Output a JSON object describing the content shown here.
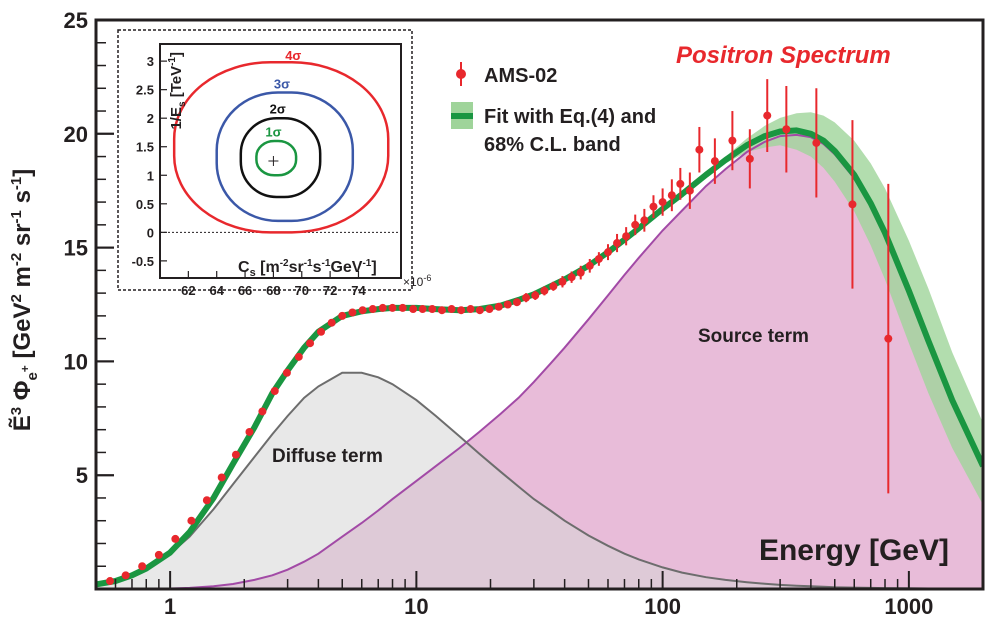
{
  "chart_data": [
    {
      "type": "line",
      "title": "Positron Spectrum",
      "xlabel": "Energy [GeV]",
      "ylabel_parts": {
        "base": "Ẽ",
        "exp": "3",
        "phi": " Φ",
        "phi_sub": "e",
        "phi_sub_sup": "+",
        "units_a": " [GeV",
        "units_b": "2",
        "units_c": " m",
        "units_d": "-2",
        "units_e": " sr",
        "units_f": "-1",
        "units_g": " s",
        "units_h": "-1",
        "units_i": "]"
      },
      "x_scale": "log",
      "xlim": [
        0.5,
        2000
      ],
      "ylim": [
        0,
        25
      ],
      "x_ticks": [
        1,
        10,
        100,
        1000
      ],
      "x_tick_labels": [
        "1",
        "10",
        "100",
        "1000"
      ],
      "y_ticks": [
        5,
        10,
        15,
        20,
        25
      ],
      "y_tick_labels": [
        "5",
        "10",
        "15",
        "20",
        "25"
      ],
      "legend": {
        "placement": "top-center",
        "entries": [
          {
            "label": "AMS-02",
            "color": "#e8282d"
          },
          {
            "label_line1": "Fit with Eq.(4) and",
            "label_line2": "68% C.L. band",
            "color": "#1a9641"
          }
        ]
      },
      "annotations": {
        "diffuse": "Diffuse term",
        "source": "Source term"
      },
      "colors": {
        "data": "#e8282d",
        "fit": "#1a9641",
        "band": "#9fd49a",
        "diffuse_fill": "#d6d6d6",
        "diffuse_line": "#6d6d6d",
        "source_fill": "#e8bcd9",
        "source_line": "#a24aa6",
        "title": "#e8282d"
      },
      "series": [
        {
          "name": "AMS-02",
          "x": [
            0.57,
            0.66,
            0.77,
            0.9,
            1.05,
            1.22,
            1.41,
            1.62,
            1.85,
            2.1,
            2.37,
            2.66,
            2.98,
            3.33,
            3.7,
            4.1,
            4.53,
            5.0,
            5.5,
            6.05,
            6.65,
            7.3,
            8.0,
            8.8,
            9.7,
            10.6,
            11.6,
            12.7,
            13.9,
            15.2,
            16.6,
            18.1,
            19.8,
            21.6,
            23.5,
            25.6,
            27.9,
            30.4,
            33.1,
            36.0,
            39.2,
            42.7,
            46.5,
            50.6,
            55.1,
            60.0,
            65.3,
            71.1,
            77.4,
            84.3,
            91.8,
            100,
            109,
            118,
            129,
            141,
            163,
            192,
            226,
            266,
            318,
            421,
            590,
            825
          ],
          "y": [
            0.35,
            0.6,
            1.0,
            1.5,
            2.2,
            3.0,
            3.9,
            4.9,
            5.9,
            6.9,
            7.8,
            8.7,
            9.5,
            10.2,
            10.8,
            11.3,
            11.7,
            12.0,
            12.15,
            12.25,
            12.3,
            12.35,
            12.35,
            12.35,
            12.3,
            12.3,
            12.3,
            12.25,
            12.3,
            12.25,
            12.3,
            12.25,
            12.3,
            12.4,
            12.5,
            12.6,
            12.8,
            12.9,
            13.1,
            13.3,
            13.5,
            13.7,
            13.9,
            14.2,
            14.5,
            14.8,
            15.2,
            15.5,
            16.0,
            16.2,
            16.8,
            17.0,
            17.3,
            17.8,
            17.5,
            19.3,
            18.8,
            19.7,
            18.9,
            20.8,
            20.2,
            19.6,
            16.9,
            11.0
          ],
          "yerr": [
            0.05,
            0.05,
            0.05,
            0.05,
            0.05,
            0.05,
            0.05,
            0.05,
            0.05,
            0.05,
            0.05,
            0.05,
            0.05,
            0.05,
            0.05,
            0.05,
            0.05,
            0.05,
            0.1,
            0.1,
            0.1,
            0.1,
            0.1,
            0.1,
            0.1,
            0.1,
            0.1,
            0.1,
            0.1,
            0.1,
            0.12,
            0.12,
            0.15,
            0.15,
            0.15,
            0.15,
            0.2,
            0.2,
            0.2,
            0.2,
            0.25,
            0.25,
            0.3,
            0.3,
            0.3,
            0.35,
            0.4,
            0.4,
            0.45,
            0.5,
            0.5,
            0.6,
            0.7,
            0.7,
            0.8,
            1.0,
            1.0,
            1.3,
            1.3,
            1.6,
            1.9,
            2.4,
            3.7,
            6.8
          ]
        },
        {
          "name": "Fit with Eq.(4) and 68% C.L. band",
          "x": [
            0.5,
            0.6,
            0.7,
            0.8,
            1.0,
            1.2,
            1.5,
            1.8,
            2.2,
            2.6,
            3.0,
            3.5,
            4.0,
            5.0,
            6.0,
            7.0,
            8.0,
            10,
            12,
            15,
            18,
            22,
            26,
            30,
            35,
            40,
            50,
            60,
            70,
            80,
            100,
            120,
            150,
            180,
            220,
            260,
            300,
            350,
            400,
            450,
            500,
            600,
            700,
            800,
            1000,
            1200,
            1500,
            2000
          ],
          "y": [
            0.2,
            0.35,
            0.6,
            0.9,
            1.6,
            2.5,
            4.0,
            5.5,
            7.1,
            8.6,
            9.6,
            10.6,
            11.3,
            12.0,
            12.2,
            12.3,
            12.35,
            12.35,
            12.3,
            12.25,
            12.3,
            12.45,
            12.7,
            12.95,
            13.3,
            13.6,
            14.2,
            14.8,
            15.35,
            15.85,
            16.7,
            17.35,
            18.2,
            18.85,
            19.5,
            19.9,
            20.1,
            20.15,
            20.0,
            19.7,
            19.25,
            18.2,
            16.95,
            15.65,
            13.1,
            10.9,
            8.3,
            5.4
          ],
          "band_low": [
            0.2,
            0.35,
            0.6,
            0.9,
            1.6,
            2.5,
            4.0,
            5.5,
            7.1,
            8.6,
            9.6,
            10.6,
            11.3,
            12.0,
            12.2,
            12.3,
            12.35,
            12.35,
            12.3,
            12.25,
            12.3,
            12.45,
            12.7,
            12.95,
            13.3,
            13.6,
            14.2,
            14.8,
            15.35,
            15.85,
            16.7,
            17.3,
            18.1,
            18.7,
            19.2,
            19.4,
            19.5,
            19.3,
            19.0,
            18.5,
            17.9,
            16.6,
            15.1,
            13.6,
            10.8,
            8.6,
            6.2,
            3.7
          ],
          "band_high": [
            0.2,
            0.35,
            0.6,
            0.9,
            1.6,
            2.5,
            4.0,
            5.5,
            7.1,
            8.6,
            9.6,
            10.6,
            11.3,
            12.0,
            12.2,
            12.3,
            12.35,
            12.35,
            12.3,
            12.25,
            12.3,
            12.45,
            12.7,
            12.95,
            13.3,
            13.6,
            14.2,
            14.8,
            15.35,
            15.85,
            16.7,
            17.4,
            18.3,
            19.0,
            19.8,
            20.35,
            20.7,
            20.9,
            20.95,
            20.8,
            20.5,
            19.7,
            18.7,
            17.6,
            15.3,
            13.2,
            10.4,
            7.3
          ]
        },
        {
          "name": "Diffuse term",
          "x": [
            0.5,
            0.6,
            0.7,
            0.8,
            1.0,
            1.2,
            1.5,
            1.8,
            2.2,
            2.6,
            3.0,
            3.5,
            4.0,
            5.0,
            6.0,
            7.0,
            8.0,
            10,
            12,
            15,
            18,
            22,
            26,
            30,
            35,
            40,
            50,
            60,
            70,
            80,
            100,
            120,
            150,
            180,
            220,
            260,
            300,
            350,
            400,
            450,
            500,
            600,
            700,
            800,
            1000,
            1200,
            1500,
            2000
          ],
          "y": [
            0.2,
            0.35,
            0.6,
            0.9,
            1.55,
            2.3,
            3.5,
            4.6,
            5.8,
            6.8,
            7.6,
            8.4,
            8.9,
            9.5,
            9.5,
            9.3,
            9.0,
            8.3,
            7.6,
            6.7,
            5.95,
            5.15,
            4.5,
            3.95,
            3.45,
            3.0,
            2.35,
            1.9,
            1.55,
            1.3,
            0.95,
            0.72,
            0.52,
            0.4,
            0.3,
            0.23,
            0.18,
            0.14,
            0.12,
            0.1,
            0.08,
            0.06,
            0.05,
            0.04,
            0.03,
            0.02,
            0.01,
            0.0
          ]
        },
        {
          "name": "Source term",
          "x": [
            0.5,
            0.6,
            0.7,
            0.8,
            1.0,
            1.2,
            1.5,
            1.8,
            2.2,
            2.6,
            3.0,
            3.5,
            4.0,
            5.0,
            6.0,
            7.0,
            8.0,
            10,
            12,
            15,
            18,
            22,
            26,
            30,
            35,
            40,
            50,
            60,
            70,
            80,
            100,
            120,
            150,
            180,
            220,
            260,
            300,
            350,
            400,
            450,
            500,
            600,
            700,
            800,
            1000,
            1200,
            1500,
            2000
          ],
          "y": [
            0.0,
            0.0,
            0.0,
            0.0,
            0.02,
            0.05,
            0.12,
            0.22,
            0.4,
            0.6,
            0.85,
            1.2,
            1.55,
            2.3,
            2.9,
            3.45,
            3.95,
            4.75,
            5.4,
            6.2,
            6.9,
            7.7,
            8.4,
            9.1,
            9.9,
            10.6,
            11.85,
            12.9,
            13.8,
            14.55,
            15.75,
            16.63,
            17.7,
            18.45,
            19.2,
            19.65,
            19.9,
            19.95,
            19.85,
            19.55,
            19.1,
            18.05,
            16.85,
            15.55,
            13.05,
            10.85,
            8.25,
            5.4
          ]
        }
      ]
    },
    {
      "type": "contour",
      "placement": "inset top-left",
      "xlabel_parts": {
        "base": "C",
        "base_sub": "s",
        "units_a": " [m",
        "units_b": "-2",
        "units_c": "sr",
        "units_d": "-1",
        "units_e": "s",
        "units_f": "-1",
        "units_g": "GeV",
        "units_h": "-1",
        "units_i": "]"
      },
      "ylabel_parts": {
        "base": "1/E",
        "base_sub": "s",
        "units_a": " [TeV",
        "units_b": "-1",
        "units_c": "]"
      },
      "x_multiplier": "×10",
      "x_multiplier_exp": "-6",
      "xlim": [
        60,
        77
      ],
      "ylim": [
        -0.8,
        3.3
      ],
      "x_ticks": [
        62,
        64,
        66,
        68,
        70,
        72,
        74
      ],
      "x_tick_labels": [
        "62",
        "64",
        "66",
        "68",
        "70",
        "72",
        "74"
      ],
      "y_ticks": [
        -0.5,
        0,
        0.5,
        1,
        1.5,
        2,
        2.5,
        3
      ],
      "y_tick_labels": [
        "-0.5",
        "0",
        "0.5",
        "1",
        "1.5",
        "2",
        "2.5",
        "3"
      ],
      "best_fit": {
        "x": 68,
        "y": 1.25
      },
      "contours": [
        {
          "label": "1σ",
          "label_num": "1",
          "color": "#1a9641",
          "xmin": 66.8,
          "xmax": 69.6,
          "ymin": 1.0,
          "ymax": 1.6,
          "label_at": [
            68.0,
            1.68
          ]
        },
        {
          "label": "2σ",
          "label_num": "2",
          "color": "#111111",
          "xmin": 65.7,
          "xmax": 71.3,
          "ymin": 0.62,
          "ymax": 2.0,
          "label_at": [
            68.3,
            2.08
          ]
        },
        {
          "label": "3σ",
          "label_num": "3",
          "color": "#3b58a8",
          "xmin": 64.0,
          "xmax": 73.6,
          "ymin": 0.2,
          "ymax": 2.45,
          "label_at": [
            68.6,
            2.52
          ]
        },
        {
          "label": "4σ",
          "label_num": "4",
          "color": "#e8282d",
          "xmin": 61.0,
          "xmax": 76.1,
          "ymin": 0.0,
          "ymax": 2.98,
          "label_at": [
            69.4,
            3.02
          ]
        }
      ]
    }
  ]
}
